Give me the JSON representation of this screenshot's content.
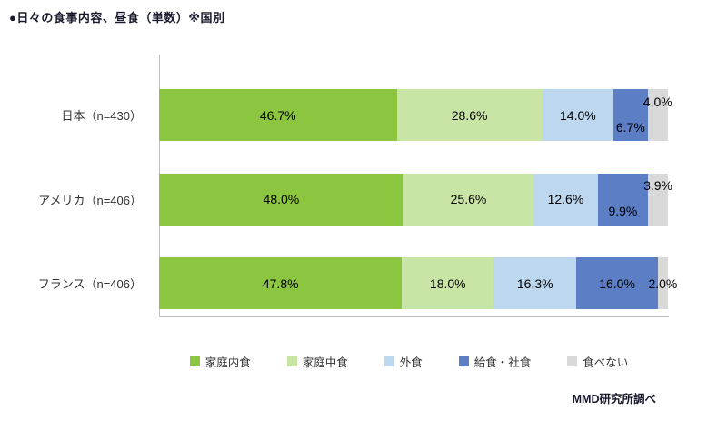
{
  "chart_data": {
    "type": "bar",
    "subtype": "horizontal-stacked-100",
    "title": "●日々の食事内容、昼食（単数）※国別",
    "categories": [
      "日本（n=430）",
      "アメリカ（n=406）",
      "フランス（n=406）"
    ],
    "series": [
      {
        "name": "家庭内食",
        "color": "#8CC540",
        "values": [
          46.7,
          48.0,
          47.8
        ]
      },
      {
        "name": "家庭中食",
        "color": "#C9E5A6",
        "values": [
          28.6,
          25.6,
          18.0
        ]
      },
      {
        "name": "外食",
        "color": "#BDD7EE",
        "values": [
          14.0,
          12.6,
          16.3
        ]
      },
      {
        "name": "給食・社食",
        "color": "#5B7EC4",
        "values": [
          6.7,
          9.9,
          16.0
        ]
      },
      {
        "name": "食べない",
        "color": "#D9D9D9",
        "values": [
          4.0,
          3.9,
          2.0
        ]
      }
    ],
    "label_format": "percent",
    "label_positions": [
      [
        "center",
        "center",
        "center",
        "low",
        "high"
      ],
      [
        "center",
        "center",
        "center",
        "low",
        "high"
      ],
      [
        "center",
        "center",
        "center",
        "center",
        "center"
      ]
    ],
    "xlim": [
      0,
      100
    ],
    "grid": false,
    "legend_position": "bottom",
    "source": "MMD研究所調べ",
    "axis_color": "#bfbfbf"
  }
}
